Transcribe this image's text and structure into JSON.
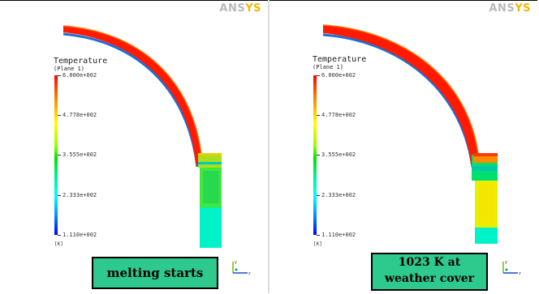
{
  "brand": {
    "logo_prefix": "ANS",
    "logo_suffix": "YS"
  },
  "legend": {
    "title": "Temperature",
    "subtitle": "(Plane 1)",
    "ticks": [
      "6.000e+002",
      "4.778e+002",
      "3.555e+002",
      "2.333e+002",
      "1.110e+002"
    ],
    "unit": "[K]"
  },
  "panels": [
    {
      "caption": "melting starts"
    },
    {
      "caption_line1": "1023 K at",
      "caption_line2": "weather cover"
    }
  ],
  "colors": {
    "hot": "#ff0000",
    "shell_inner": "#1b6fd6",
    "green": "#22d44a",
    "cyan": "#00f0c0",
    "caption_bg": "#2ec98c"
  }
}
